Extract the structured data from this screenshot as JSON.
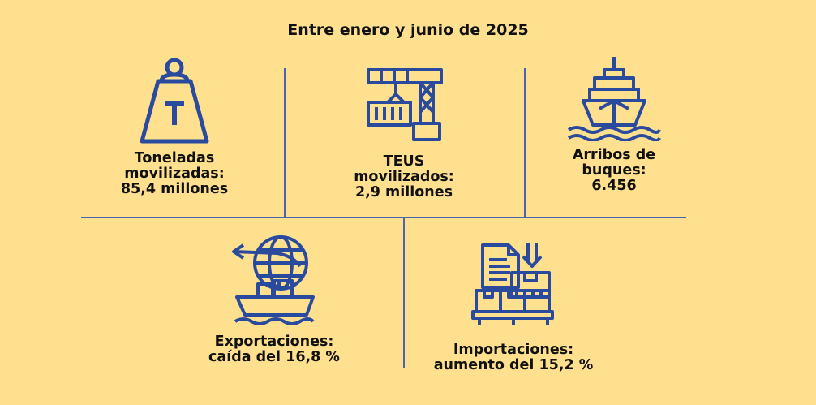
{
  "title": "Entre enero y junio de 2025",
  "stats": [
    {
      "lines": [
        "Toneladas",
        "movilizadas:",
        "85,4 millones"
      ],
      "icon": "weight-icon"
    },
    {
      "lines": [
        "TEUS",
        "movilizados:",
        "2,9 millones"
      ],
      "icon": "crane-container-icon"
    },
    {
      "lines": [
        "Arribos de",
        "buques:",
        "6.456"
      ],
      "icon": "ship-icon"
    },
    {
      "lines": [
        "Exportaciones:",
        "caída del 16,8 %"
      ],
      "icon": "export-globe-ship-icon"
    },
    {
      "lines": [
        "Importaciones:",
        "aumento del 15,2 %"
      ],
      "icon": "import-boxes-icon"
    }
  ],
  "colors": {
    "background": "#ffe08f",
    "icon": "#2a4a9e",
    "divider": "#4a64b0",
    "text": "#111111"
  }
}
